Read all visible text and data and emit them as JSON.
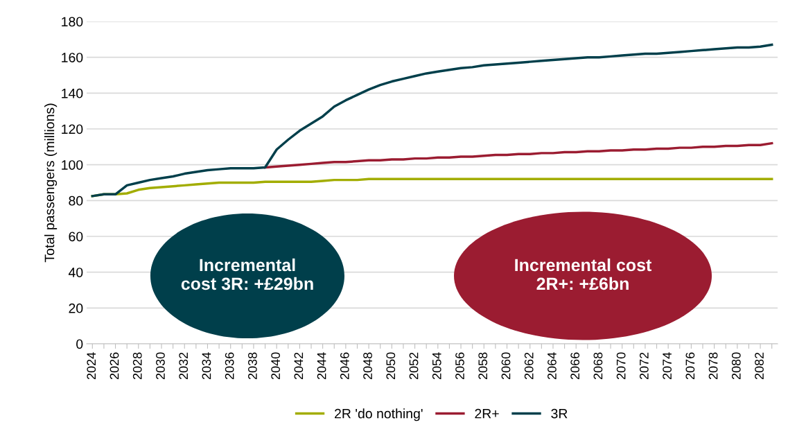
{
  "chart_data": {
    "type": "line",
    "ylabel": "Total passengers (millions)",
    "categories": [
      "2024",
      null,
      "2026",
      null,
      "2028",
      null,
      "2030",
      null,
      "2032",
      null,
      "2034",
      null,
      "2036",
      null,
      "2038",
      null,
      "2040",
      null,
      "2042",
      null,
      "2044",
      null,
      "2046",
      null,
      "2048",
      null,
      "2050",
      null,
      "2052",
      null,
      "2054",
      null,
      "2056",
      null,
      "2058",
      null,
      "2060",
      null,
      "2062",
      null,
      "2064",
      null,
      "2066",
      null,
      "2068",
      null,
      "2070",
      null,
      "2072",
      null,
      "2074",
      null,
      "2076",
      null,
      "2078",
      null,
      "2080",
      null,
      "2082",
      null
    ],
    "series": [
      {
        "name": "2R 'do nothing'",
        "color": "#a2ad00",
        "values": [
          82.5,
          83.5,
          83.5,
          84,
          86,
          87,
          87.5,
          88,
          88.5,
          89,
          89.5,
          90,
          90,
          90,
          90,
          90.5,
          90.5,
          90.5,
          90.5,
          90.5,
          91,
          91.5,
          91.5,
          91.5,
          92,
          92,
          92,
          92,
          92,
          92,
          92,
          92,
          92,
          92,
          92,
          92,
          92,
          92,
          92,
          92,
          92,
          92,
          92,
          92,
          92,
          92,
          92,
          92,
          92,
          92,
          92,
          92,
          92,
          92,
          92,
          92,
          92,
          92,
          92,
          92
        ]
      },
      {
        "name": "2R+",
        "color": "#9b1c31",
        "values": [
          null,
          null,
          null,
          null,
          null,
          null,
          null,
          null,
          null,
          null,
          null,
          null,
          null,
          null,
          null,
          98.5,
          99,
          99.5,
          100,
          100.5,
          101,
          101.5,
          101.5,
          102,
          102.5,
          102.5,
          103,
          103,
          103.5,
          103.5,
          104,
          104,
          104.5,
          104.5,
          105,
          105.5,
          105.5,
          106,
          106,
          106.5,
          106.5,
          107,
          107,
          107.5,
          107.5,
          108,
          108,
          108.5,
          108.5,
          109,
          109,
          109.5,
          109.5,
          110,
          110,
          110.5,
          110.5,
          111,
          111,
          112
        ]
      },
      {
        "name": "3R",
        "color": "#003f4b",
        "values": [
          82.5,
          83.5,
          83.5,
          88.5,
          90,
          91.5,
          92.5,
          93.5,
          95,
          96,
          97,
          97.5,
          98,
          98,
          98,
          98.5,
          108.5,
          114,
          119,
          123,
          127,
          132.5,
          136,
          139,
          142,
          144.5,
          146.5,
          148,
          149.5,
          151,
          152,
          153,
          154,
          154.5,
          155.5,
          156,
          156.5,
          157,
          157.5,
          158,
          158.5,
          159,
          159.5,
          160,
          160,
          160.5,
          161,
          161.5,
          162,
          162,
          162.5,
          163,
          163.5,
          164,
          164.5,
          165,
          165.5,
          165.5,
          166,
          167
        ]
      }
    ],
    "ylim": [
      0,
      180
    ],
    "yticks": [
      0,
      20,
      40,
      60,
      80,
      100,
      120,
      140,
      160,
      180
    ],
    "grid": "y",
    "legend": "bottom",
    "annotations": [
      "Incremental\ncost 3R: +£29bn",
      "Incremental cost\n2R+: +£6bn"
    ]
  }
}
